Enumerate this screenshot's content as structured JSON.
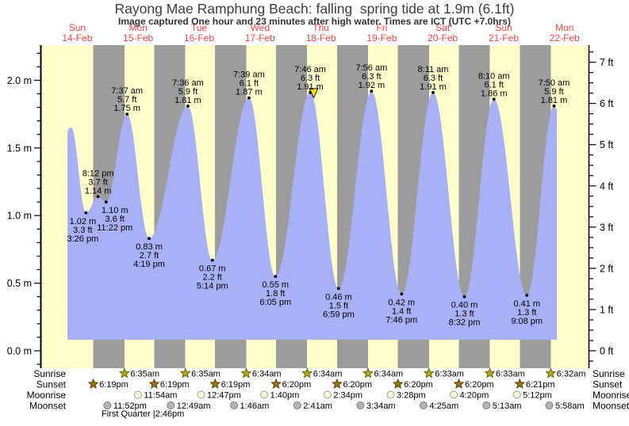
{
  "title": "Rayong Mae Ramphung Beach: falling  spring tide at 1.9m (6.1ft)",
  "subtitle": "Image captured One hour and 23 minutes after high water. Times are ICT (UTC +7.0hrs)",
  "colors": {
    "day_band": "#ffffcc",
    "night_band": "#9c9c9c",
    "tide_fill": "#a8b0f6",
    "day_label_red": "#ff4444",
    "annotation_text": "#000000",
    "axis": "#000000",
    "current_marker": "#ffdf00",
    "sunrise_star": "#b2a81e",
    "sunrise_star_edge": "#6b6400",
    "sunset_star": "#9a721e",
    "sunset_star_edge": "#5e4200",
    "moonrise_fill": "#ffffd8",
    "moonrise_edge": "#9a9a9a",
    "moonset_fill": "#b5b5b5",
    "moonset_edge": "#7f7f7f"
  },
  "chart_data": {
    "type": "area",
    "title": "Rayong Mae Ramphung Beach: falling  spring tide at 1.9m (6.1ft)",
    "days": [
      {
        "name": "Sun",
        "date": "14-Feb"
      },
      {
        "name": "Mon",
        "date": "15-Feb"
      },
      {
        "name": "Tue",
        "date": "16-Feb"
      },
      {
        "name": "Wed",
        "date": "17-Feb"
      },
      {
        "name": "Thu",
        "date": "18-Feb"
      },
      {
        "name": "Fri",
        "date": "19-Feb"
      },
      {
        "name": "Sat",
        "date": "20-Feb"
      },
      {
        "name": "Sun",
        "date": "21-Feb"
      },
      {
        "name": "Mon",
        "date": "22-Feb"
      }
    ],
    "y_axis_left": {
      "unit": "m",
      "ticks": [
        {
          "value": 0.0,
          "label": "0.0 m"
        },
        {
          "value": 0.5,
          "label": "0.5 m"
        },
        {
          "value": 1.0,
          "label": "1.0 m"
        },
        {
          "value": 1.5,
          "label": "1.5 m"
        },
        {
          "value": 2.0,
          "label": "2.0 m"
        }
      ]
    },
    "y_axis_right": {
      "unit": "ft",
      "ticks": [
        {
          "value": 0,
          "label": "0 ft"
        },
        {
          "value": 1,
          "label": "1 ft"
        },
        {
          "value": 2,
          "label": "2 ft"
        },
        {
          "value": 3,
          "label": "3 ft"
        },
        {
          "value": 4,
          "label": "4 ft"
        },
        {
          "value": 5,
          "label": "5 ft"
        },
        {
          "value": 6,
          "label": "6 ft"
        },
        {
          "value": 7,
          "label": "7 ft"
        }
      ]
    },
    "tide_events": [
      {
        "day": 0,
        "time": "9:40 am",
        "height_m": 1.65,
        "height_ft": 5.4,
        "type": "high",
        "labeled": false
      },
      {
        "day": 0,
        "time": "3:26 pm",
        "height_m": 1.02,
        "height_ft": 3.3,
        "type": "low",
        "labeled": true
      },
      {
        "day": 0,
        "time": "8:12 pm",
        "height_m": 1.14,
        "height_ft": 3.7,
        "type": "high",
        "labeled": true
      },
      {
        "day": 0,
        "time": "11:22 pm",
        "height_m": 1.1,
        "height_ft": 3.6,
        "type": "low",
        "labeled": true
      },
      {
        "day": 1,
        "time": "7:37 am",
        "height_m": 1.75,
        "height_ft": 5.7,
        "type": "high",
        "labeled": true
      },
      {
        "day": 1,
        "time": "4:19 pm",
        "height_m": 0.83,
        "height_ft": 2.7,
        "type": "low",
        "labeled": true
      },
      {
        "day": 2,
        "time": "7:36 am",
        "height_m": 1.81,
        "height_ft": 5.9,
        "type": "high",
        "labeled": true
      },
      {
        "day": 2,
        "time": "5:14 pm",
        "height_m": 0.67,
        "height_ft": 2.2,
        "type": "low",
        "labeled": true
      },
      {
        "day": 3,
        "time": "7:39 am",
        "height_m": 1.87,
        "height_ft": 6.1,
        "type": "high",
        "labeled": true
      },
      {
        "day": 3,
        "time": "6:05 pm",
        "height_m": 0.55,
        "height_ft": 1.8,
        "type": "low",
        "labeled": true
      },
      {
        "day": 4,
        "time": "7:46 am",
        "height_m": 1.91,
        "height_ft": 6.3,
        "type": "high",
        "labeled": true
      },
      {
        "day": 4,
        "time": "6:59 pm",
        "height_m": 0.46,
        "height_ft": 1.5,
        "type": "low",
        "labeled": true
      },
      {
        "day": 5,
        "time": "7:56 am",
        "height_m": 1.92,
        "height_ft": 6.3,
        "type": "high",
        "labeled": true
      },
      {
        "day": 5,
        "time": "7:46 pm",
        "height_m": 0.42,
        "height_ft": 1.4,
        "type": "low",
        "labeled": true
      },
      {
        "day": 6,
        "time": "8:11 am",
        "height_m": 1.91,
        "height_ft": 6.3,
        "type": "high",
        "labeled": true
      },
      {
        "day": 6,
        "time": "8:32 pm",
        "height_m": 0.4,
        "height_ft": 1.3,
        "type": "low",
        "labeled": true
      },
      {
        "day": 7,
        "time": "8:10 am",
        "height_m": 1.86,
        "height_ft": 6.1,
        "type": "high",
        "labeled": true
      },
      {
        "day": 7,
        "time": "9:08 pm",
        "height_m": 0.41,
        "height_ft": 1.3,
        "type": "low",
        "labeled": true
      },
      {
        "day": 8,
        "time": "7:50 am",
        "height_m": 1.81,
        "height_ft": 5.9,
        "type": "high",
        "labeled": true
      }
    ],
    "current_time_marker": {
      "day": 4,
      "time": "9:09 am"
    },
    "curve_start": {
      "day": 0,
      "time": "8:10 am"
    }
  },
  "astro": {
    "row_labels": [
      "Sunrise",
      "Sunset",
      "Moonrise",
      "Moonset"
    ],
    "sunrise": [
      {
        "day": 1,
        "time": "6:35am"
      },
      {
        "day": 2,
        "time": "6:35am"
      },
      {
        "day": 3,
        "time": "6:34am"
      },
      {
        "day": 4,
        "time": "6:34am"
      },
      {
        "day": 5,
        "time": "6:34am"
      },
      {
        "day": 6,
        "time": "6:33am"
      },
      {
        "day": 7,
        "time": "6:33am"
      },
      {
        "day": 8,
        "time": "6:32am"
      }
    ],
    "sunset": [
      {
        "day": 0,
        "time": "6:19pm"
      },
      {
        "day": 1,
        "time": "6:19pm"
      },
      {
        "day": 2,
        "time": "6:19pm"
      },
      {
        "day": 3,
        "time": "6:20pm"
      },
      {
        "day": 4,
        "time": "6:20pm"
      },
      {
        "day": 5,
        "time": "6:20pm"
      },
      {
        "day": 6,
        "time": "6:20pm"
      },
      {
        "day": 7,
        "time": "6:21pm"
      }
    ],
    "moonrise": [
      {
        "day": 1,
        "time": "11:54am"
      },
      {
        "day": 2,
        "time": "12:47pm"
      },
      {
        "day": 3,
        "time": "1:40pm"
      },
      {
        "day": 4,
        "time": "2:34pm"
      },
      {
        "day": 5,
        "time": "3:28pm"
      },
      {
        "day": 6,
        "time": "4:20pm"
      },
      {
        "day": 7,
        "time": "5:12pm"
      }
    ],
    "moonset": [
      {
        "day": 0,
        "time": "11:52pm"
      },
      {
        "day": 2,
        "time": "12:49am"
      },
      {
        "day": 3,
        "time": "1:46am"
      },
      {
        "day": 4,
        "time": "2:41am"
      },
      {
        "day": 5,
        "time": "3:34am"
      },
      {
        "day": 6,
        "time": "4:25am"
      },
      {
        "day": 7,
        "time": "5:13am"
      },
      {
        "day": 8,
        "time": "5:58am"
      }
    ],
    "moon_phase": {
      "label": "First Quarter",
      "time": "2:46pm"
    }
  }
}
